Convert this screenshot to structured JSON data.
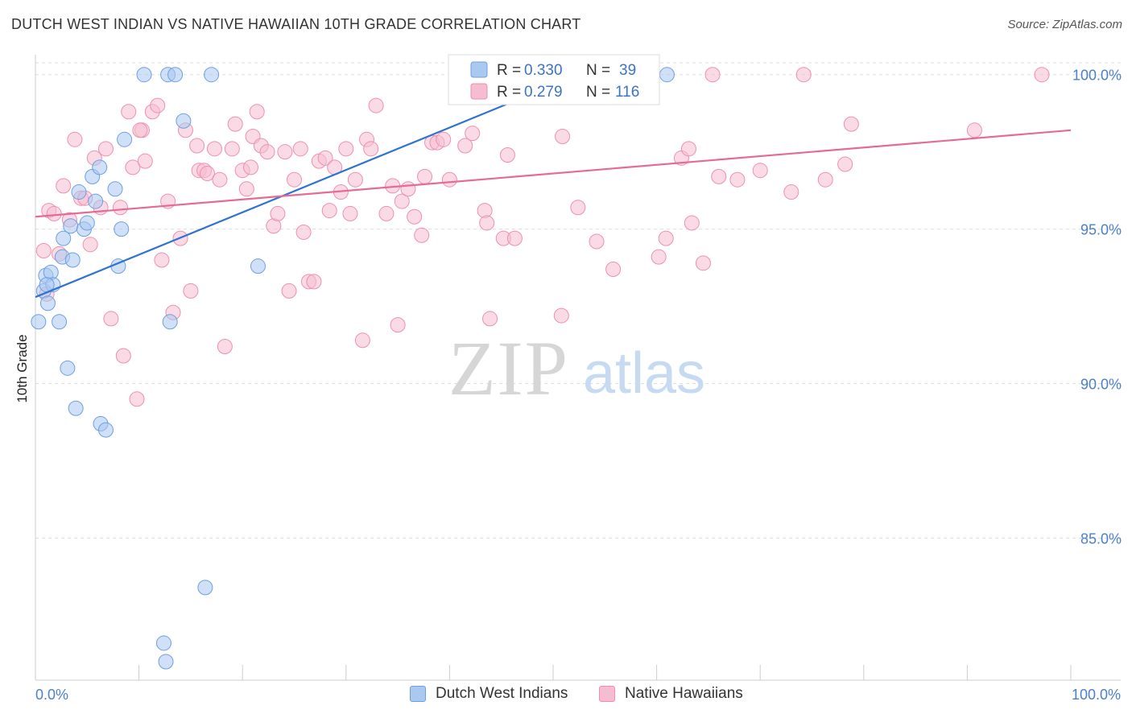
{
  "title": "DUTCH WEST INDIAN VS NATIVE HAWAIIAN 10TH GRADE CORRELATION CHART",
  "source": "Source: ZipAtlas.com",
  "watermark": {
    "zip": "ZIP",
    "atlas": "atlas"
  },
  "colors": {
    "blue_fill": "#aac8f0",
    "blue_stroke": "#6d9fe0",
    "blue_line": "#2f72d0",
    "pink_fill": "#f6bdd0",
    "pink_stroke": "#ec90ae",
    "pink_line": "#e56b95",
    "tick_text": "#4a7fd0",
    "grid": "#dddddd"
  },
  "legend_top": {
    "rows": [
      {
        "r_label": "R = ",
        "r_value": "0.330",
        "n_label": "N = ",
        "n_value": "39"
      },
      {
        "r_label": "R = ",
        "r_value": "0.279",
        "n_label": "N = ",
        "n_value": "116"
      }
    ]
  },
  "legend_bottom": {
    "items": [
      {
        "label": "Dutch West Indians"
      },
      {
        "label": "Native Hawaiians"
      }
    ]
  },
  "chart_data": {
    "type": "scatter",
    "title": "DUTCH WEST INDIAN VS NATIVE HAWAIIAN 10TH GRADE CORRELATION CHART",
    "xlabel": "",
    "ylabel": "10th Grade",
    "xlim": [
      0,
      100
    ],
    "ylim": [
      80.4,
      100.8
    ],
    "x_tick_labels": [
      "0.0%",
      "100.0%"
    ],
    "y_ticks": [
      85,
      90,
      95,
      100
    ],
    "y_tick_labels": [
      "85.0%",
      "90.0%",
      "95.0%",
      "100.0%"
    ],
    "grid": true,
    "series": [
      {
        "name": "Dutch West Indians",
        "color": "blue",
        "r": 0.33,
        "n": 39,
        "trendline": {
          "x": [
            0,
            52.5
          ],
          "y": [
            92.8,
            100.0
          ]
        },
        "points": [
          [
            0.3,
            92.0
          ],
          [
            0.8,
            93.0
          ],
          [
            1.0,
            93.5
          ],
          [
            1.2,
            92.6
          ],
          [
            1.5,
            93.6
          ],
          [
            1.7,
            93.2
          ],
          [
            2.3,
            92.0
          ],
          [
            2.6,
            94.1
          ],
          [
            2.7,
            94.7
          ],
          [
            3.1,
            90.5
          ],
          [
            3.4,
            95.1
          ],
          [
            3.6,
            94.0
          ],
          [
            3.9,
            89.2
          ],
          [
            4.2,
            96.2
          ],
          [
            4.7,
            95.0
          ],
          [
            5.0,
            95.2
          ],
          [
            5.5,
            96.7
          ],
          [
            5.8,
            95.9
          ],
          [
            6.2,
            97.0
          ],
          [
            6.3,
            88.7
          ],
          [
            6.8,
            88.5
          ],
          [
            7.7,
            96.3
          ],
          [
            8.0,
            93.8
          ],
          [
            8.3,
            95.0
          ],
          [
            8.6,
            97.9
          ],
          [
            10.5,
            100.0
          ],
          [
            12.6,
            81.0
          ],
          [
            12.8,
            100.0
          ],
          [
            13.0,
            92.0
          ],
          [
            13.5,
            100.0
          ],
          [
            14.3,
            98.5
          ],
          [
            16.4,
            83.4
          ],
          [
            17.0,
            100.0
          ],
          [
            21.5,
            93.8
          ],
          [
            43.8,
            100.0
          ],
          [
            44.9,
            100.0
          ],
          [
            61.0,
            100.0
          ],
          [
            12.4,
            81.6
          ],
          [
            1.1,
            93.2
          ]
        ]
      },
      {
        "name": "Native Hawaiians",
        "color": "pink",
        "r": 0.279,
        "n": 116,
        "trendline": {
          "x": [
            0,
            100
          ],
          "y": [
            95.4,
            98.2
          ]
        },
        "points": [
          [
            0.8,
            94.3
          ],
          [
            1.1,
            92.9
          ],
          [
            1.3,
            95.6
          ],
          [
            1.8,
            95.5
          ],
          [
            2.3,
            94.2
          ],
          [
            2.7,
            96.4
          ],
          [
            3.3,
            95.3
          ],
          [
            3.8,
            97.9
          ],
          [
            4.4,
            96.0
          ],
          [
            4.8,
            96.0
          ],
          [
            5.3,
            94.5
          ],
          [
            5.7,
            97.3
          ],
          [
            6.3,
            95.7
          ],
          [
            6.8,
            97.6
          ],
          [
            7.3,
            92.1
          ],
          [
            8.2,
            95.7
          ],
          [
            8.5,
            90.9
          ],
          [
            9.0,
            98.8
          ],
          [
            9.4,
            97.0
          ],
          [
            9.8,
            89.5
          ],
          [
            10.3,
            98.2
          ],
          [
            10.6,
            97.2
          ],
          [
            11.3,
            98.8
          ],
          [
            11.8,
            99.0
          ],
          [
            12.2,
            94.0
          ],
          [
            12.8,
            95.9
          ],
          [
            13.3,
            92.3
          ],
          [
            14.0,
            94.7
          ],
          [
            14.5,
            98.2
          ],
          [
            15.0,
            93.0
          ],
          [
            15.8,
            96.9
          ],
          [
            16.3,
            96.9
          ],
          [
            16.6,
            96.8
          ],
          [
            17.3,
            97.6
          ],
          [
            17.8,
            96.6
          ],
          [
            18.3,
            91.2
          ],
          [
            19.0,
            97.6
          ],
          [
            19.3,
            98.4
          ],
          [
            20.0,
            96.9
          ],
          [
            20.4,
            96.3
          ],
          [
            21.0,
            98.0
          ],
          [
            21.4,
            98.8
          ],
          [
            21.8,
            97.7
          ],
          [
            22.4,
            97.5
          ],
          [
            23.0,
            95.1
          ],
          [
            23.4,
            95.5
          ],
          [
            24.1,
            97.5
          ],
          [
            24.5,
            93.0
          ],
          [
            25.0,
            96.6
          ],
          [
            25.6,
            97.6
          ],
          [
            25.9,
            94.9
          ],
          [
            26.4,
            93.3
          ],
          [
            26.9,
            93.3
          ],
          [
            27.4,
            97.2
          ],
          [
            28.0,
            97.3
          ],
          [
            28.4,
            95.6
          ],
          [
            28.9,
            97.0
          ],
          [
            29.5,
            96.2
          ],
          [
            30.0,
            97.6
          ],
          [
            30.4,
            95.5
          ],
          [
            30.9,
            96.6
          ],
          [
            31.6,
            91.4
          ],
          [
            32.0,
            97.9
          ],
          [
            32.4,
            97.6
          ],
          [
            32.9,
            99.0
          ],
          [
            33.9,
            95.5
          ],
          [
            34.5,
            96.4
          ],
          [
            35.0,
            91.9
          ],
          [
            35.4,
            95.9
          ],
          [
            36.0,
            96.3
          ],
          [
            36.6,
            95.4
          ],
          [
            37.3,
            94.8
          ],
          [
            37.6,
            96.7
          ],
          [
            38.3,
            97.8
          ],
          [
            38.8,
            97.8
          ],
          [
            39.4,
            97.9
          ],
          [
            40.0,
            96.6
          ],
          [
            41.1,
            100.0
          ],
          [
            41.5,
            97.7
          ],
          [
            42.2,
            98.1
          ],
          [
            43.4,
            95.6
          ],
          [
            43.6,
            95.2
          ],
          [
            43.9,
            92.1
          ],
          [
            45.2,
            94.7
          ],
          [
            45.6,
            97.4
          ],
          [
            46.3,
            94.7
          ],
          [
            47.2,
            100.0
          ],
          [
            50.3,
            100.0
          ],
          [
            50.8,
            92.2
          ],
          [
            50.9,
            98.0
          ],
          [
            52.4,
            95.7
          ],
          [
            53.5,
            100.0
          ],
          [
            54.2,
            94.6
          ],
          [
            55.8,
            93.7
          ],
          [
            58.3,
            100.0
          ],
          [
            59.0,
            100.0
          ],
          [
            60.2,
            94.1
          ],
          [
            60.9,
            94.7
          ],
          [
            62.4,
            97.3
          ],
          [
            63.1,
            97.6
          ],
          [
            63.4,
            95.2
          ],
          [
            64.5,
            93.9
          ],
          [
            65.4,
            100.0
          ],
          [
            66.0,
            96.7
          ],
          [
            67.8,
            96.6
          ],
          [
            70.0,
            96.9
          ],
          [
            73.0,
            96.2
          ],
          [
            74.2,
            100.0
          ],
          [
            76.3,
            96.6
          ],
          [
            78.2,
            97.1
          ],
          [
            78.8,
            98.4
          ],
          [
            90.7,
            98.2
          ],
          [
            97.2,
            100.0
          ],
          [
            10.1,
            98.2
          ],
          [
            15.6,
            97.7
          ],
          [
            20.8,
            97.0
          ]
        ]
      }
    ]
  }
}
